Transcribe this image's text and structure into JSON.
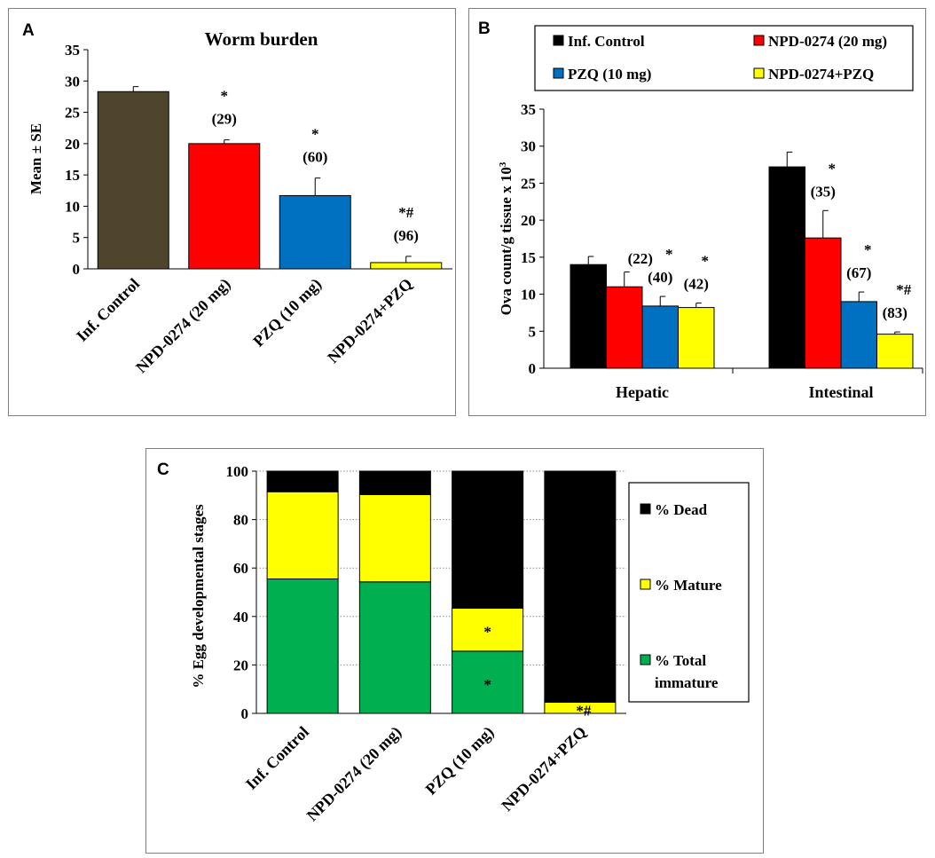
{
  "panels": {
    "a": {
      "label": "A"
    },
    "b": {
      "label": "B"
    },
    "c": {
      "label": "C"
    }
  },
  "chart_data": [
    {
      "id": "A",
      "type": "bar",
      "title": "Worm burden",
      "ylabel": "Mean ± SE",
      "ylim": [
        0,
        35
      ],
      "yticks": [
        0,
        5,
        10,
        15,
        20,
        25,
        30,
        35
      ],
      "categories": [
        "Inf. Control",
        "NPD-0274 (20 mg)",
        "PZQ (10 mg)",
        "NPD-0274+PZQ"
      ],
      "values": [
        28.3,
        20.0,
        11.7,
        1.0
      ],
      "errors": [
        0.8,
        0.6,
        2.8,
        1.0
      ],
      "colors": [
        "#4f452d",
        "#ff0000",
        "#0070c0",
        "#ffff00"
      ],
      "annotations": [
        {
          "sig": "",
          "pct": ""
        },
        {
          "sig": "*",
          "pct": "(29)"
        },
        {
          "sig": "*",
          "pct": "(60)"
        },
        {
          "sig": "*#",
          "pct": "(96)"
        }
      ]
    },
    {
      "id": "B",
      "type": "bar",
      "ylabel": "Ova count/g tissue x 10",
      "ylabel_sup": "3",
      "ylim": [
        0,
        35
      ],
      "yticks": [
        0,
        5,
        10,
        15,
        20,
        25,
        30,
        35
      ],
      "categories": [
        "Hepatic",
        "Intestinal"
      ],
      "series": [
        {
          "name": "Inf. Control",
          "color": "#000000",
          "values": [
            14.0,
            27.2
          ],
          "errors": [
            1.1,
            2.0
          ],
          "sig": [
            "",
            ""
          ],
          "pct": [
            "",
            ""
          ]
        },
        {
          "name": "NPD-0274 (20 mg)",
          "color": "#ff0000",
          "values": [
            11.0,
            17.6
          ],
          "errors": [
            2.0,
            3.7
          ],
          "sig": [
            "",
            "*"
          ],
          "pct": [
            "(22)",
            "(35)"
          ]
        },
        {
          "name": "PZQ (10 mg)",
          "color": "#0070c0",
          "values": [
            8.4,
            9.0
          ],
          "errors": [
            1.3,
            1.3
          ],
          "sig": [
            "*",
            "*"
          ],
          "pct": [
            "(40)",
            "(67)"
          ]
        },
        {
          "name": "NPD-0274+PZQ",
          "color": "#ffff00",
          "values": [
            8.2,
            4.6
          ],
          "errors": [
            0.6,
            0.3
          ],
          "sig": [
            "*",
            "*#"
          ],
          "pct": [
            "(42)",
            "(83)"
          ]
        }
      ],
      "legend_position": "top"
    },
    {
      "id": "C",
      "type": "bar",
      "stacked": true,
      "ylabel": "% Egg developmental stages",
      "ylim": [
        0,
        100
      ],
      "yticks": [
        0,
        20,
        40,
        60,
        80,
        100
      ],
      "grid": true,
      "categories": [
        "Inf. Control",
        "NPD-0274 (20 mg)",
        "PZQ (10 mg)",
        "NPD-0274+PZQ"
      ],
      "series": [
        {
          "name": "% Total immature",
          "color": "#00b050",
          "values": [
            55.5,
            54.3,
            25.7,
            0
          ],
          "sig": [
            "",
            "",
            "*",
            ""
          ]
        },
        {
          "name": "% Mature",
          "color": "#ffff00",
          "values": [
            36.0,
            36.0,
            17.7,
            4.6
          ],
          "sig": [
            "",
            "",
            "*",
            "*#"
          ]
        },
        {
          "name": "% Dead",
          "color": "#000000",
          "values": [
            8.5,
            9.7,
            56.6,
            95.4
          ],
          "sig": [
            "",
            "",
            "",
            ""
          ]
        }
      ],
      "legend_labels": [
        {
          "text1": "% Dead",
          "text2": ""
        },
        {
          "text1": "% Mature",
          "text2": ""
        },
        {
          "text1": "% Total",
          "text2": "immature"
        }
      ],
      "legend_position": "right"
    }
  ]
}
